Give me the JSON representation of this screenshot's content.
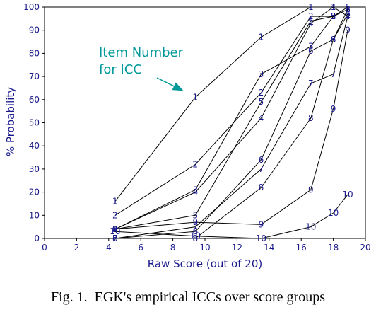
{
  "chart_data": {
    "type": "line",
    "xlabel": "Raw Score (out of 20)",
    "ylabel": "% Probability",
    "xlim": [
      0,
      20
    ],
    "ylim": [
      0,
      100
    ],
    "x_ticks": [
      0,
      2,
      4,
      6,
      8,
      10,
      12,
      14,
      16,
      18,
      20
    ],
    "y_ticks": [
      0,
      10,
      20,
      30,
      40,
      50,
      60,
      70,
      80,
      90,
      100
    ],
    "grid": false,
    "annotation": {
      "lines": [
        "Item Number",
        "for ICC"
      ],
      "arrow_to": {
        "x": 8.6,
        "y": 64
      }
    },
    "caption": "Fig. 1.  EGK's empirical ICCs over score groups",
    "series": [
      {
        "name": "1",
        "x": [
          4.4,
          9.4,
          13.5,
          16.6,
          18.0,
          18.9
        ],
        "y": [
          16,
          61,
          87,
          100,
          100,
          100
        ]
      },
      {
        "name": "2",
        "x": [
          4.4,
          9.4,
          13.5,
          16.6,
          18.0,
          18.9
        ],
        "y": [
          10,
          32,
          63,
          96,
          96,
          99
        ]
      },
      {
        "name": "3",
        "x": [
          4.4,
          9.4,
          13.5,
          16.6,
          18.0,
          18.9
        ],
        "y": [
          4,
          21,
          71,
          83,
          96,
          99
        ]
      },
      {
        "name": "4",
        "x": [
          4.4,
          9.4,
          13.5,
          16.6,
          18.0,
          18.9
        ],
        "y": [
          4,
          20,
          52,
          93,
          100,
          96
        ]
      },
      {
        "name": "5",
        "x": [
          4.4,
          9.4,
          13.5,
          16.6,
          18.0,
          18.9
        ],
        "y": [
          4,
          10,
          59,
          94,
          96,
          100
        ]
      },
      {
        "name": "6",
        "x": [
          4.4,
          9.4,
          13.5,
          16.6,
          18.0,
          18.9
        ],
        "y": [
          0,
          3,
          34,
          81,
          86,
          97
        ]
      },
      {
        "name": "7",
        "x": [
          4.4,
          9.4,
          13.5,
          16.6,
          18.0,
          18.9
        ],
        "y": [
          0,
          5,
          30,
          67,
          71,
          96
        ]
      },
      {
        "name": "8",
        "x": [
          4.4,
          9.4,
          13.5,
          16.6,
          18.0,
          18.9
        ],
        "y": [
          0,
          0,
          22,
          52,
          86,
          99
        ]
      },
      {
        "name": "9",
        "x": [
          4.4,
          9.4,
          13.5,
          16.6,
          18.0,
          18.9
        ],
        "y": [
          4,
          7,
          6,
          21,
          56,
          90
        ]
      },
      {
        "name": "10",
        "x": [
          4.4,
          9.4,
          13.5,
          16.6,
          18.0,
          18.9
        ],
        "y": [
          3,
          1,
          0,
          5,
          11,
          19
        ]
      }
    ]
  }
}
